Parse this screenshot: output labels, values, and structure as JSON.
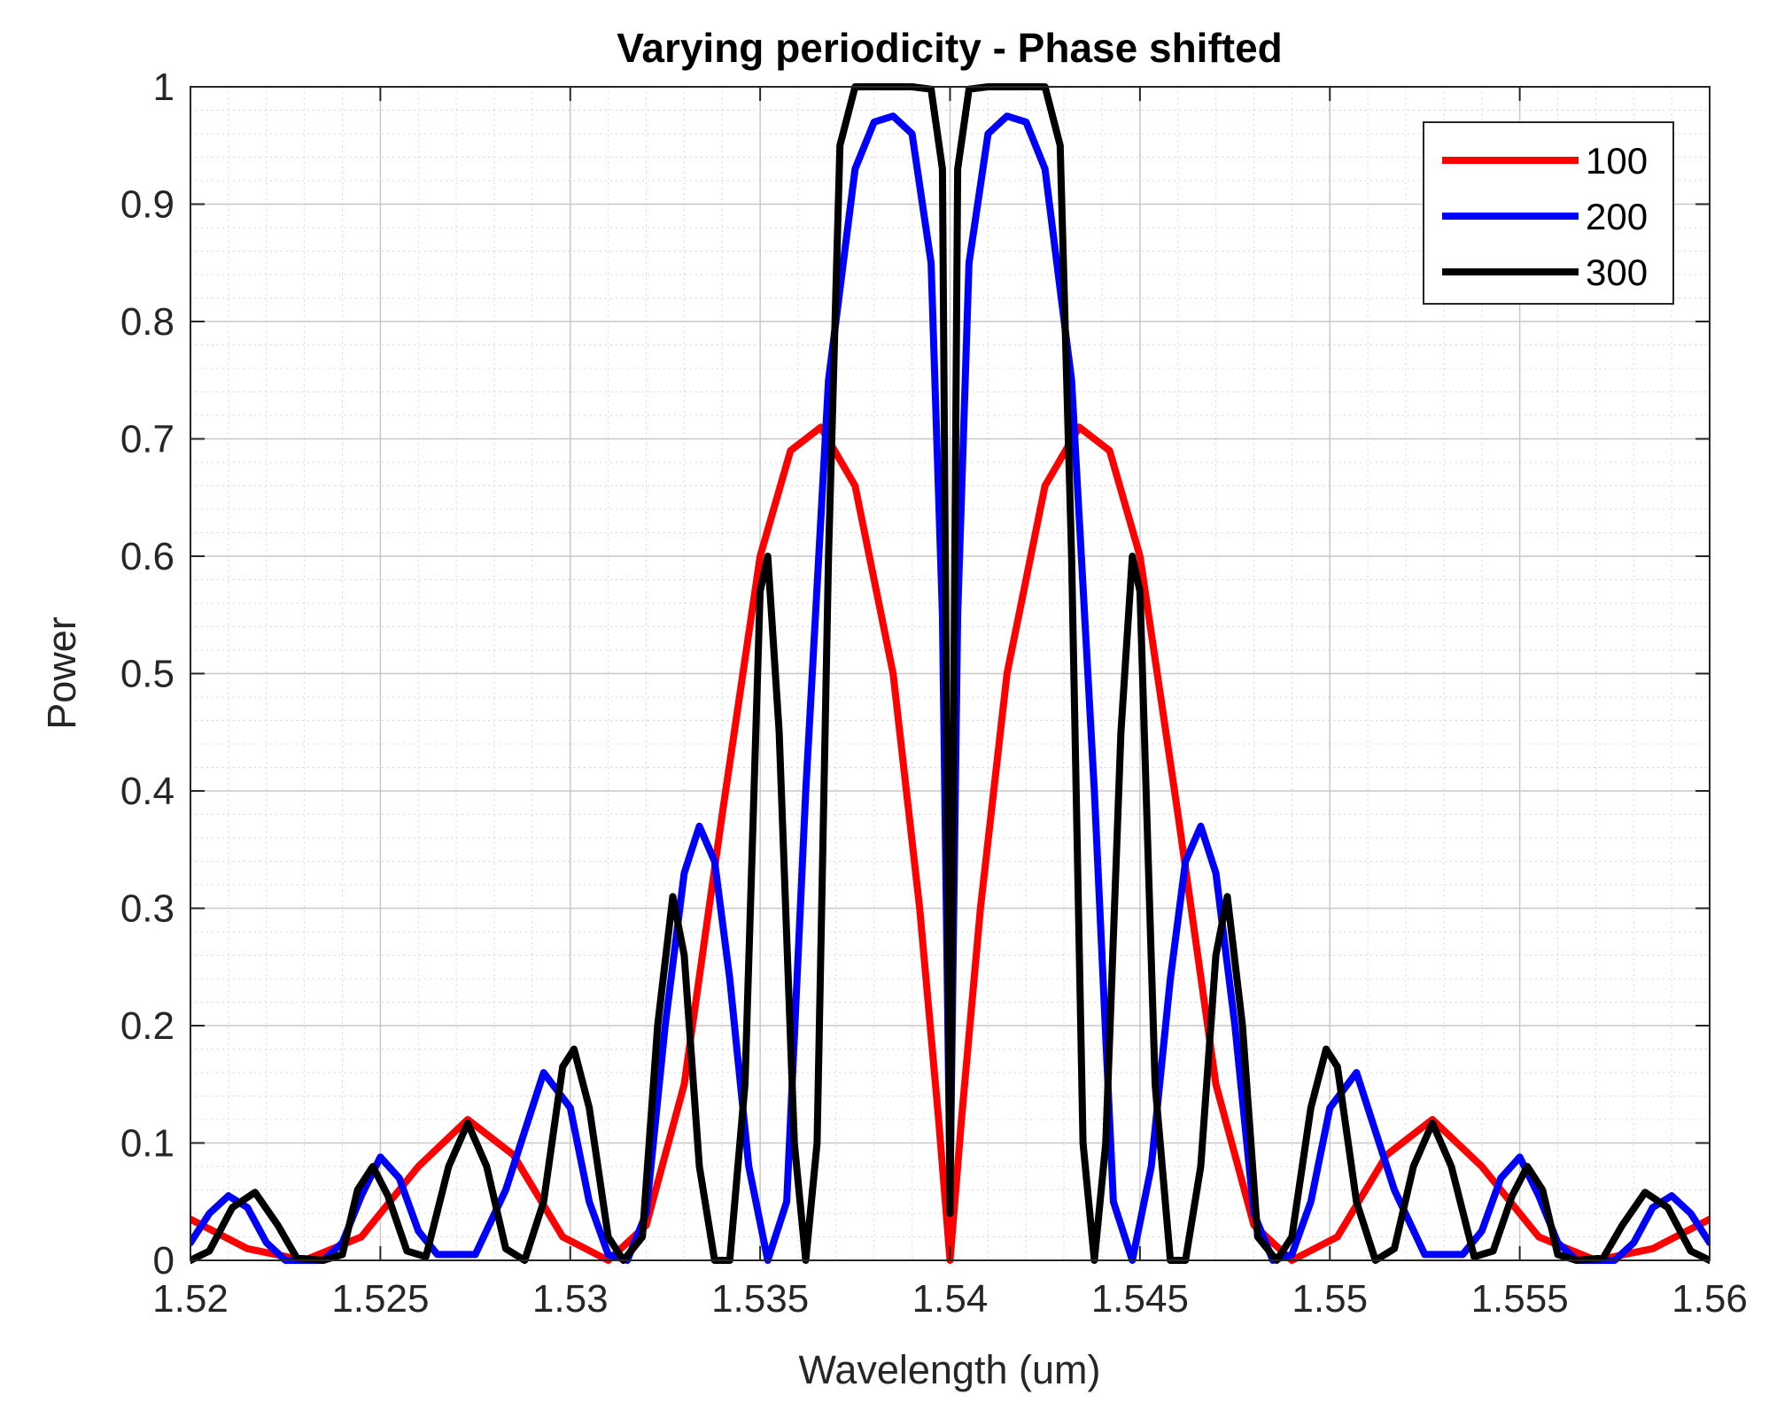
{
  "chart_data": {
    "type": "line",
    "title": "Varying periodicity - Phase shifted",
    "xlabel": "Wavelength (um)",
    "ylabel": "Power",
    "xlim": [
      1.52,
      1.56
    ],
    "ylim": [
      0,
      1
    ],
    "xticks": [
      1.52,
      1.525,
      1.53,
      1.535,
      1.54,
      1.545,
      1.55,
      1.555,
      1.56
    ],
    "xtick_labels": [
      "1.52",
      "1.525",
      "1.53",
      "1.535",
      "1.54",
      "1.545",
      "1.55",
      "1.555",
      "1.56"
    ],
    "yticks": [
      0,
      0.1,
      0.2,
      0.3,
      0.4,
      0.5,
      0.6,
      0.7,
      0.8,
      0.9,
      1
    ],
    "ytick_labels": [
      "0",
      "0.1",
      "0.2",
      "0.3",
      "0.4",
      "0.5",
      "0.6",
      "0.7",
      "0.8",
      "0.9",
      "1"
    ],
    "grid": true,
    "minor_grid": true,
    "legend_position": "top-right",
    "series": [
      {
        "name": "100",
        "color": "#ff0000",
        "points": [
          [
            1.52,
            0.035
          ],
          [
            1.5215,
            0.01
          ],
          [
            1.523,
            0.0
          ],
          [
            1.5245,
            0.02
          ],
          [
            1.526,
            0.08
          ],
          [
            1.5273,
            0.12
          ],
          [
            1.5285,
            0.09
          ],
          [
            1.5298,
            0.02
          ],
          [
            1.531,
            0.0
          ],
          [
            1.532,
            0.03
          ],
          [
            1.533,
            0.15
          ],
          [
            1.534,
            0.38
          ],
          [
            1.535,
            0.6
          ],
          [
            1.5358,
            0.69
          ],
          [
            1.5366,
            0.71
          ],
          [
            1.5375,
            0.66
          ],
          [
            1.5385,
            0.5
          ],
          [
            1.5392,
            0.3
          ],
          [
            1.5397,
            0.12
          ],
          [
            1.54,
            0.0
          ],
          [
            1.5403,
            0.12
          ],
          [
            1.5408,
            0.3
          ],
          [
            1.5415,
            0.5
          ],
          [
            1.5425,
            0.66
          ],
          [
            1.5434,
            0.71
          ],
          [
            1.5442,
            0.69
          ],
          [
            1.545,
            0.6
          ],
          [
            1.546,
            0.38
          ],
          [
            1.547,
            0.15
          ],
          [
            1.548,
            0.03
          ],
          [
            1.549,
            0.0
          ],
          [
            1.5502,
            0.02
          ],
          [
            1.5515,
            0.09
          ],
          [
            1.5527,
            0.12
          ],
          [
            1.554,
            0.08
          ],
          [
            1.5555,
            0.02
          ],
          [
            1.557,
            0.0
          ],
          [
            1.5585,
            0.01
          ],
          [
            1.56,
            0.035
          ]
        ]
      },
      {
        "name": "200",
        "color": "#0000ff",
        "points": [
          [
            1.52,
            0.015
          ],
          [
            1.5205,
            0.04
          ],
          [
            1.521,
            0.055
          ],
          [
            1.5215,
            0.045
          ],
          [
            1.522,
            0.015
          ],
          [
            1.5225,
            0.0
          ],
          [
            1.5235,
            0.0
          ],
          [
            1.524,
            0.015
          ],
          [
            1.5245,
            0.055
          ],
          [
            1.525,
            0.088
          ],
          [
            1.5255,
            0.07
          ],
          [
            1.526,
            0.025
          ],
          [
            1.5265,
            0.005
          ],
          [
            1.5275,
            0.005
          ],
          [
            1.5283,
            0.06
          ],
          [
            1.5293,
            0.16
          ],
          [
            1.53,
            0.13
          ],
          [
            1.5305,
            0.05
          ],
          [
            1.531,
            0.005
          ],
          [
            1.5315,
            0.0
          ],
          [
            1.532,
            0.04
          ],
          [
            1.5325,
            0.2
          ],
          [
            1.533,
            0.33
          ],
          [
            1.5334,
            0.37
          ],
          [
            1.5338,
            0.34
          ],
          [
            1.5342,
            0.24
          ],
          [
            1.5347,
            0.08
          ],
          [
            1.5352,
            0.0
          ],
          [
            1.5357,
            0.05
          ],
          [
            1.5362,
            0.4
          ],
          [
            1.5368,
            0.75
          ],
          [
            1.5375,
            0.93
          ],
          [
            1.538,
            0.97
          ],
          [
            1.5385,
            0.975
          ],
          [
            1.539,
            0.96
          ],
          [
            1.5395,
            0.85
          ],
          [
            1.5398,
            0.55
          ],
          [
            1.54,
            0.06
          ],
          [
            1.5402,
            0.55
          ],
          [
            1.5405,
            0.85
          ],
          [
            1.541,
            0.96
          ],
          [
            1.5415,
            0.975
          ],
          [
            1.542,
            0.97
          ],
          [
            1.5425,
            0.93
          ],
          [
            1.5432,
            0.75
          ],
          [
            1.5438,
            0.4
          ],
          [
            1.5443,
            0.05
          ],
          [
            1.5448,
            0.0
          ],
          [
            1.5453,
            0.08
          ],
          [
            1.5458,
            0.24
          ],
          [
            1.5462,
            0.34
          ],
          [
            1.5466,
            0.37
          ],
          [
            1.547,
            0.33
          ],
          [
            1.5475,
            0.2
          ],
          [
            1.548,
            0.04
          ],
          [
            1.5485,
            0.0
          ],
          [
            1.549,
            0.005
          ],
          [
            1.5495,
            0.05
          ],
          [
            1.55,
            0.13
          ],
          [
            1.5507,
            0.16
          ],
          [
            1.5517,
            0.06
          ],
          [
            1.5525,
            0.005
          ],
          [
            1.5535,
            0.005
          ],
          [
            1.554,
            0.025
          ],
          [
            1.5545,
            0.07
          ],
          [
            1.555,
            0.088
          ],
          [
            1.5555,
            0.055
          ],
          [
            1.556,
            0.015
          ],
          [
            1.5565,
            0.0
          ],
          [
            1.5575,
            0.0
          ],
          [
            1.558,
            0.015
          ],
          [
            1.5585,
            0.045
          ],
          [
            1.559,
            0.055
          ],
          [
            1.5595,
            0.04
          ],
          [
            1.56,
            0.015
          ]
        ]
      },
      {
        "name": "300",
        "color": "#000000",
        "points": [
          [
            1.52,
            0.0
          ],
          [
            1.5205,
            0.008
          ],
          [
            1.5211,
            0.045
          ],
          [
            1.5217,
            0.058
          ],
          [
            1.5223,
            0.03
          ],
          [
            1.5228,
            0.002
          ],
          [
            1.5235,
            0.0
          ],
          [
            1.524,
            0.005
          ],
          [
            1.5244,
            0.06
          ],
          [
            1.5248,
            0.08
          ],
          [
            1.5252,
            0.055
          ],
          [
            1.5257,
            0.008
          ],
          [
            1.5262,
            0.003
          ],
          [
            1.5268,
            0.08
          ],
          [
            1.5273,
            0.117
          ],
          [
            1.5278,
            0.08
          ],
          [
            1.5283,
            0.01
          ],
          [
            1.5288,
            0.0
          ],
          [
            1.5293,
            0.05
          ],
          [
            1.5298,
            0.165
          ],
          [
            1.5301,
            0.18
          ],
          [
            1.5305,
            0.13
          ],
          [
            1.531,
            0.02
          ],
          [
            1.5314,
            0.0
          ],
          [
            1.5319,
            0.02
          ],
          [
            1.5323,
            0.2
          ],
          [
            1.5327,
            0.31
          ],
          [
            1.533,
            0.26
          ],
          [
            1.5334,
            0.08
          ],
          [
            1.5338,
            0.0
          ],
          [
            1.5342,
            0.0
          ],
          [
            1.5346,
            0.15
          ],
          [
            1.535,
            0.57
          ],
          [
            1.5352,
            0.6
          ],
          [
            1.5355,
            0.45
          ],
          [
            1.5359,
            0.1
          ],
          [
            1.5362,
            0.0
          ],
          [
            1.5365,
            0.1
          ],
          [
            1.5368,
            0.6
          ],
          [
            1.5371,
            0.95
          ],
          [
            1.5375,
            1.0
          ],
          [
            1.539,
            1.0
          ],
          [
            1.5395,
            0.998
          ],
          [
            1.5398,
            0.93
          ],
          [
            1.54,
            0.04
          ],
          [
            1.5402,
            0.93
          ],
          [
            1.5405,
            0.998
          ],
          [
            1.541,
            1.0
          ],
          [
            1.5425,
            1.0
          ],
          [
            1.5429,
            0.95
          ],
          [
            1.5432,
            0.6
          ],
          [
            1.5435,
            0.1
          ],
          [
            1.5438,
            0.0
          ],
          [
            1.5441,
            0.1
          ],
          [
            1.5445,
            0.45
          ],
          [
            1.5448,
            0.6
          ],
          [
            1.545,
            0.57
          ],
          [
            1.5454,
            0.15
          ],
          [
            1.5458,
            0.0
          ],
          [
            1.5462,
            0.0
          ],
          [
            1.5466,
            0.08
          ],
          [
            1.547,
            0.26
          ],
          [
            1.5473,
            0.31
          ],
          [
            1.5477,
            0.2
          ],
          [
            1.5481,
            0.02
          ],
          [
            1.5486,
            0.0
          ],
          [
            1.549,
            0.02
          ],
          [
            1.5495,
            0.13
          ],
          [
            1.5499,
            0.18
          ],
          [
            1.5502,
            0.165
          ],
          [
            1.5507,
            0.05
          ],
          [
            1.5512,
            0.0
          ],
          [
            1.5517,
            0.01
          ],
          [
            1.5522,
            0.08
          ],
          [
            1.5527,
            0.117
          ],
          [
            1.5532,
            0.08
          ],
          [
            1.5538,
            0.003
          ],
          [
            1.5543,
            0.008
          ],
          [
            1.5548,
            0.055
          ],
          [
            1.5552,
            0.08
          ],
          [
            1.5556,
            0.06
          ],
          [
            1.556,
            0.005
          ],
          [
            1.5565,
            0.0
          ],
          [
            1.5572,
            0.002
          ],
          [
            1.5577,
            0.03
          ],
          [
            1.5583,
            0.058
          ],
          [
            1.5589,
            0.045
          ],
          [
            1.5595,
            0.008
          ],
          [
            1.56,
            0.0
          ]
        ]
      }
    ]
  }
}
